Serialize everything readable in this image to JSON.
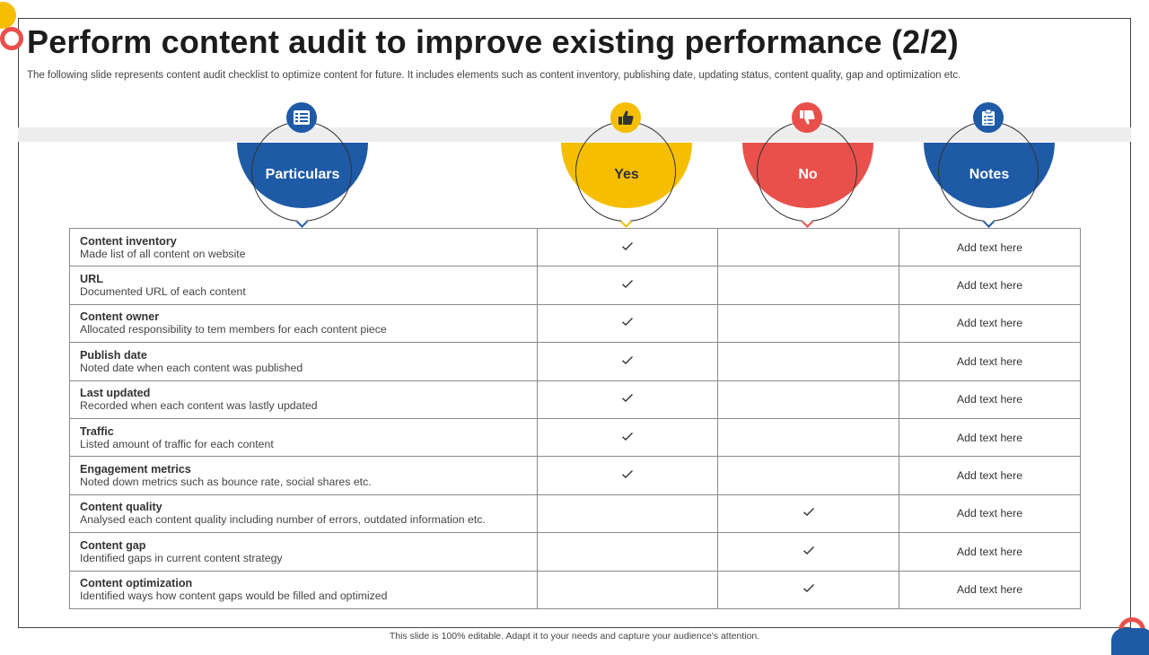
{
  "title": "Perform content audit to improve existing performance (2/2)",
  "subtitle": "The following slide represents content audit checklist to optimize content for future. It includes elements such as content inventory, publishing date, updating status, content quality, gap and optimization etc.",
  "colors": {
    "blue": "#1E5AA6",
    "yellow": "#F5BE00",
    "red": "#E9504C"
  },
  "columns": [
    {
      "label": "Particulars",
      "icon": "checklist-icon",
      "color": "#1E5AA6"
    },
    {
      "label": "Yes",
      "icon": "thumbs-up-icon",
      "color": "#F5BE00"
    },
    {
      "label": "No",
      "icon": "thumbs-down-icon",
      "color": "#E9504C"
    },
    {
      "label": "Notes",
      "icon": "clipboard-icon",
      "color": "#1E5AA6"
    }
  ],
  "rows": [
    {
      "title": "Content inventory",
      "text": "Made list of all content on website",
      "yes": true,
      "no": false,
      "note": "Add text here"
    },
    {
      "title": "URL",
      "text": "Documented URL of each content",
      "yes": true,
      "no": false,
      "note": "Add text here"
    },
    {
      "title": "Content owner",
      "text": "Allocated responsibility to tem members for each content piece",
      "yes": true,
      "no": false,
      "note": "Add text here"
    },
    {
      "title": "Publish date",
      "text": "Noted date when each content was published",
      "yes": true,
      "no": false,
      "note": "Add text here"
    },
    {
      "title": "Last updated",
      "text": "Recorded when each content was lastly updated",
      "yes": true,
      "no": false,
      "note": "Add text here"
    },
    {
      "title": "Traffic",
      "text": "Listed amount of traffic for each content",
      "yes": true,
      "no": false,
      "note": "Add text here"
    },
    {
      "title": "Engagement metrics",
      "text": "Noted down metrics such as bounce rate, social shares etc.",
      "yes": true,
      "no": false,
      "note": "Add text here"
    },
    {
      "title": "Content quality",
      "text": "Analysed each  content quality including number of errors, outdated information etc.",
      "yes": false,
      "no": true,
      "note": "Add text here"
    },
    {
      "title": "Content gap",
      "text": "Identified gaps in current content strategy",
      "yes": false,
      "no": true,
      "note": "Add text here"
    },
    {
      "title": "Content optimization",
      "text": "Identified ways how content gaps would be filled and optimized",
      "yes": false,
      "no": true,
      "note": "Add text here"
    }
  ],
  "footer": "This slide is 100% editable. Adapt it to your needs and capture your audience's attention."
}
